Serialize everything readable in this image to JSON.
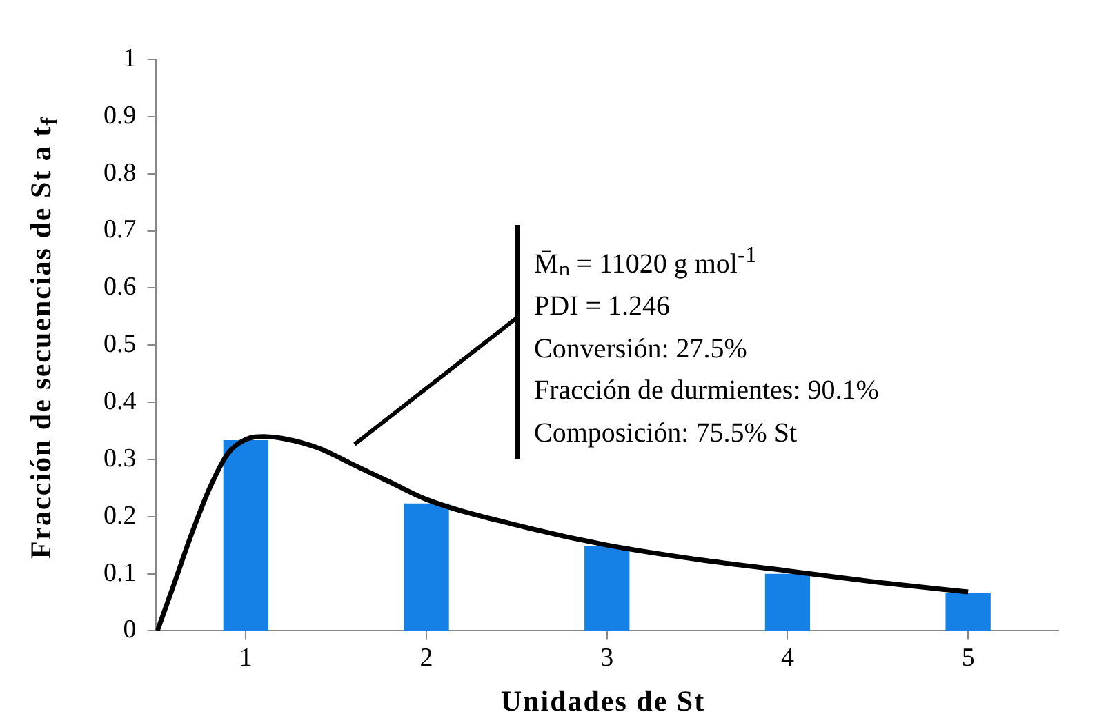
{
  "chart_data": {
    "type": "bar",
    "xlabel": "Unidades de St",
    "ylabel": "Fracción de secuencias de St a t$_{f}$",
    "x": [
      1,
      2,
      3,
      4,
      5
    ],
    "xlim": [
      0.5,
      5.5
    ],
    "xticks": [
      1,
      2,
      3,
      4,
      5
    ],
    "ylim": [
      0,
      1
    ],
    "yticks": [
      0,
      0.1,
      0.2,
      0.3,
      0.4,
      0.5,
      0.6,
      0.7,
      0.8,
      0.9,
      1
    ],
    "series": [
      {
        "color": "#1580e6",
        "values": [
          0.333,
          0.222,
          0.148,
          0.099,
          0.066
        ]
      },
      {
        "type": "line",
        "color": "#000000",
        "x": [
          0.51,
          0.6,
          0.7,
          0.8,
          0.9,
          1.0,
          1.1,
          1.2,
          1.4,
          1.6,
          1.8,
          2.0,
          2.5,
          3.0,
          3.5,
          4.0,
          4.5,
          5.0
        ],
        "values": [
          0,
          0.08,
          0.17,
          0.25,
          0.31,
          0.335,
          0.34,
          0.337,
          0.32,
          0.29,
          0.26,
          0.23,
          0.185,
          0.15,
          0.125,
          0.105,
          0.085,
          0.068
        ]
      }
    ],
    "annotations": [
      "M̄ₙ = 11020 g mol$^{-1}$",
      "PDI = 1.246",
      "Conversión: 27.5%",
      "Fracción de durmientes: 90.1%",
      "Composición: 75.5% St"
    ],
    "legend": false,
    "grid": false,
    "marker": "none"
  }
}
